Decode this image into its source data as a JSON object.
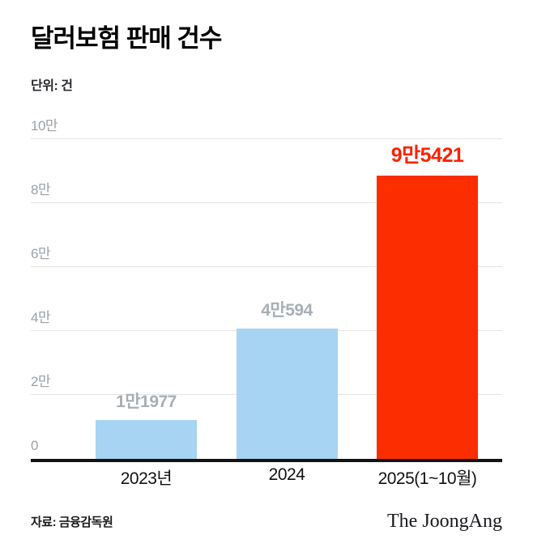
{
  "header": {
    "title": "달러보험 판매 건수",
    "unit_label": "단위: 건"
  },
  "chart_data": {
    "type": "bar",
    "title": "달러보험 판매 건수",
    "unit": "건",
    "categories": [
      "2023년",
      "2024",
      "2025(1~10월)"
    ],
    "values": [
      11977,
      40594,
      95421
    ],
    "value_labels": [
      "1만1977",
      "4만594",
      "9만5421"
    ],
    "bar_colors": [
      "#a6d4f2",
      "#a6d4f2",
      "#fc2d00"
    ],
    "label_colors": [
      "#a8aeb5",
      "#a8aeb5",
      "#fc2100"
    ],
    "ylim": [
      0,
      100000
    ],
    "yticks": [
      0,
      20000,
      40000,
      60000,
      80000,
      100000
    ],
    "ytick_labels": [
      "0",
      "2만",
      "4만",
      "6만",
      "8만",
      "10만"
    ],
    "grid": true,
    "legend": false
  },
  "footer": {
    "source": "자료: 금융감독원",
    "logo": "The JoongAng"
  }
}
